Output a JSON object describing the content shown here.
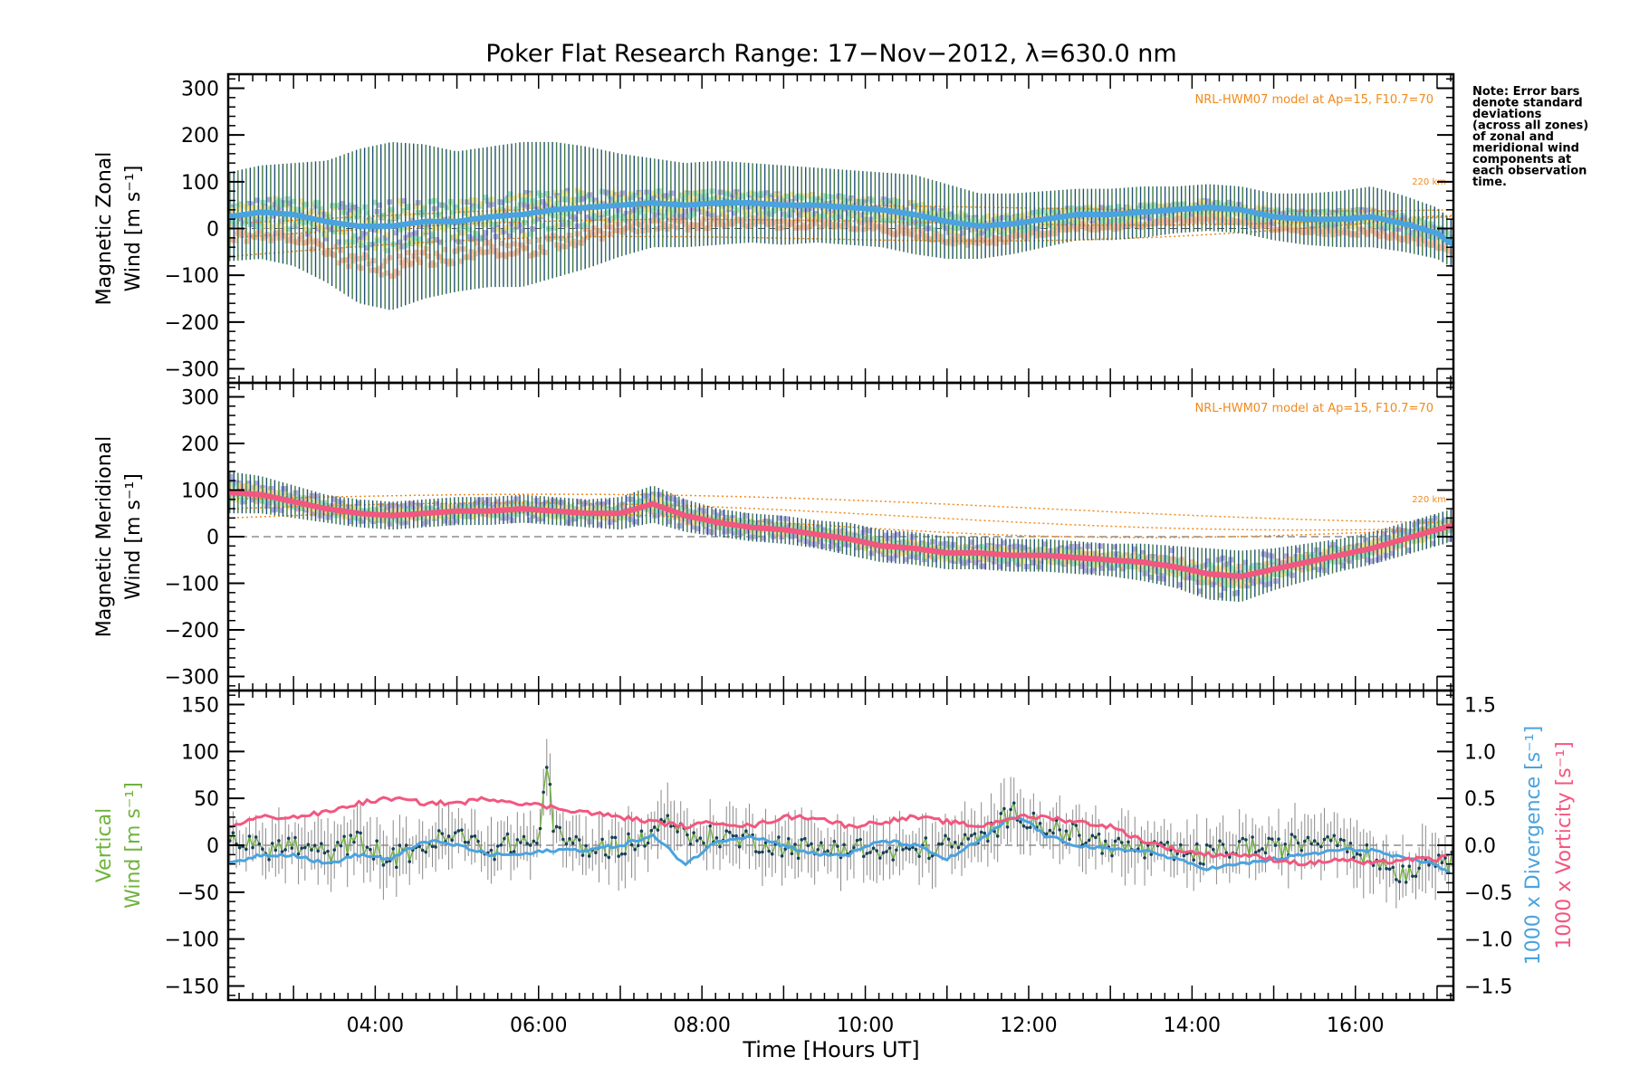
{
  "chart_data": {
    "title": "Poker Flat Research Range: 17−Nov−2012, λ=630.0 nm",
    "note": [
      "Note: Error bars",
      "denote standard",
      "deviations",
      "(across all zones)",
      "of zonal and",
      "meridional wind",
      "components at",
      "each observation",
      "time."
    ],
    "xlabel": "Time [Hours UT]",
    "xlim": [
      2.2,
      17.2
    ],
    "xticks": [
      "04:00",
      "06:00",
      "08:00",
      "10:00",
      "12:00",
      "14:00",
      "16:00"
    ],
    "xtick_values": [
      4,
      6,
      8,
      10,
      12,
      14,
      16
    ],
    "colors": {
      "zonal_line": "#4aa3df",
      "meridional_line": "#f2577f",
      "vertical_line": "#6fb33c",
      "divergence_line": "#4aa3df",
      "vorticity_line": "#f2577f",
      "errorbar_dark": "#1f4f7a",
      "errorbar_green": "#3d7a3d",
      "model_line": "#f08a1c",
      "zone_peach": "#f9b99a",
      "zone_lavender": "#a9a0e0",
      "zone_yellow": "#f6e38a",
      "zone_mint": "#8fe0c0",
      "vertical_errorbar": "#8a8a8a"
    },
    "panels": [
      {
        "name": "zonal",
        "ylabel": [
          "Magnetic Zonal",
          "Wind [m s⁻¹]"
        ],
        "ylim": [
          -330,
          330
        ],
        "yticks": [
          -300,
          -200,
          -100,
          0,
          100,
          200,
          300
        ],
        "model_label": "NRL-HWM07 model at Ap=15, F10.7=70",
        "model_altitude_label": "220 km",
        "series": {
          "x": [
            2.2,
            2.6,
            3.0,
            3.4,
            3.8,
            4.2,
            4.6,
            5.0,
            5.4,
            5.8,
            6.2,
            6.6,
            7.0,
            7.4,
            7.8,
            8.2,
            8.6,
            9.0,
            9.4,
            9.8,
            10.2,
            10.6,
            11.0,
            11.4,
            11.8,
            12.2,
            12.6,
            13.0,
            13.4,
            13.8,
            14.2,
            14.6,
            15.0,
            15.4,
            15.8,
            16.2,
            16.6,
            17.0,
            17.2
          ],
          "mean": [
            25,
            35,
            30,
            15,
            5,
            5,
            15,
            15,
            25,
            30,
            40,
            45,
            50,
            55,
            50,
            55,
            55,
            50,
            50,
            45,
            40,
            30,
            15,
            5,
            10,
            20,
            30,
            30,
            35,
            40,
            45,
            40,
            25,
            20,
            20,
            25,
            10,
            -10,
            -35
          ],
          "std": [
            95,
            100,
            110,
            130,
            165,
            180,
            165,
            150,
            150,
            155,
            145,
            130,
            110,
            95,
            90,
            90,
            85,
            85,
            80,
            80,
            80,
            85,
            80,
            70,
            65,
            60,
            55,
            55,
            55,
            50,
            50,
            50,
            50,
            55,
            60,
            65,
            60,
            55,
            50
          ]
        },
        "model_curves": [
          {
            "label": "220 km",
            "values_start": 10,
            "values_end": 60
          },
          {
            "label": "",
            "values_start": -20,
            "values_end": 40
          },
          {
            "label": "",
            "values_start": -60,
            "values_end": 20
          }
        ]
      },
      {
        "name": "meridional",
        "ylabel": [
          "Magnetic Meridional",
          "Wind [m s⁻¹]"
        ],
        "ylim": [
          -330,
          330
        ],
        "yticks": [
          -300,
          -200,
          -100,
          0,
          100,
          200,
          300
        ],
        "model_label": "NRL-HWM07 model at Ap=15, F10.7=70",
        "model_altitude_label": "220 km",
        "series": {
          "x": [
            2.2,
            2.6,
            3.0,
            3.4,
            3.8,
            4.2,
            4.6,
            5.0,
            5.4,
            5.8,
            6.2,
            6.6,
            7.0,
            7.4,
            7.8,
            8.2,
            8.6,
            9.0,
            9.4,
            9.8,
            10.2,
            10.6,
            11.0,
            11.4,
            11.8,
            12.2,
            12.6,
            13.0,
            13.4,
            13.8,
            14.2,
            14.6,
            15.0,
            15.4,
            15.8,
            16.2,
            16.6,
            17.0,
            17.2
          ],
          "mean": [
            95,
            90,
            75,
            60,
            50,
            45,
            50,
            55,
            55,
            60,
            55,
            50,
            50,
            70,
            45,
            30,
            20,
            15,
            5,
            -5,
            -20,
            -25,
            -35,
            -35,
            -40,
            -40,
            -45,
            -50,
            -55,
            -65,
            -80,
            -85,
            -70,
            -55,
            -40,
            -25,
            -5,
            15,
            25
          ],
          "std": [
            45,
            40,
            35,
            30,
            30,
            30,
            30,
            30,
            30,
            30,
            30,
            30,
            35,
            40,
            35,
            30,
            30,
            30,
            30,
            35,
            35,
            35,
            35,
            35,
            35,
            35,
            35,
            35,
            40,
            45,
            55,
            55,
            45,
            40,
            35,
            35,
            35,
            35,
            35
          ]
        },
        "model_curves": [
          {
            "label": "220 km",
            "values_start": 80,
            "values_end": 50
          },
          {
            "label": "",
            "values_start": 60,
            "values_end": 30
          },
          {
            "label": "",
            "values_start": 40,
            "values_end": 10
          }
        ]
      },
      {
        "name": "vertical",
        "ylabel": [
          "Vertical",
          "Wind [m s⁻¹]"
        ],
        "ylim": [
          -165,
          165
        ],
        "yticks": [
          -150,
          -100,
          -50,
          0,
          50,
          100,
          150
        ],
        "y2label_divergence": "1000 x Divergence [s⁻¹]",
        "y2label_vorticity": "1000 x Vorticity [s⁻¹]",
        "y2lim": [
          -1.65,
          1.65
        ],
        "y2ticks": [
          -1.5,
          -1.0,
          -0.5,
          0.0,
          0.5,
          1.0,
          1.5
        ],
        "y2ticklabels": [
          "−1.5",
          "−1.0",
          "−0.5",
          "0.0",
          "0.5",
          "1.0",
          "1.5"
        ],
        "vertical": {
          "x": [
            2.2,
            2.6,
            3.0,
            3.4,
            3.8,
            4.2,
            4.6,
            5.0,
            5.4,
            5.8,
            6.0,
            6.1,
            6.2,
            6.6,
            7.0,
            7.4,
            7.6,
            7.8,
            8.2,
            8.6,
            9.0,
            9.4,
            9.8,
            10.2,
            10.6,
            11.0,
            11.4,
            11.8,
            12.0,
            12.2,
            12.6,
            13.0,
            13.4,
            13.8,
            14.2,
            14.6,
            15.0,
            15.4,
            15.8,
            16.2,
            16.6,
            17.0,
            17.2
          ],
          "values": [
            10,
            -5,
            0,
            -10,
            5,
            -15,
            0,
            10,
            -5,
            5,
            0,
            90,
            10,
            -5,
            0,
            10,
            35,
            5,
            10,
            5,
            0,
            -5,
            0,
            -10,
            -5,
            0,
            5,
            35,
            30,
            20,
            10,
            0,
            -5,
            -10,
            -10,
            0,
            -5,
            5,
            10,
            -15,
            -30,
            -10,
            -20
          ]
        },
        "divergence": {
          "x": [
            2.2,
            2.6,
            3.0,
            3.4,
            3.8,
            4.2,
            4.6,
            5.0,
            5.4,
            5.8,
            6.2,
            6.6,
            7.0,
            7.4,
            7.8,
            8.2,
            8.6,
            9.0,
            9.4,
            9.8,
            10.2,
            10.6,
            11.0,
            11.4,
            11.8,
            12.0,
            12.2,
            12.6,
            13.0,
            13.4,
            13.8,
            14.2,
            14.6,
            15.0,
            15.4,
            15.8,
            16.2,
            16.6,
            17.0,
            17.2
          ],
          "values": [
            -0.2,
            -0.1,
            -0.1,
            -0.2,
            -0.1,
            -0.15,
            0.05,
            0.0,
            -0.1,
            -0.1,
            -0.05,
            -0.05,
            0.0,
            0.1,
            -0.2,
            0.05,
            0.1,
            0.0,
            -0.1,
            -0.1,
            0.05,
            0.0,
            -0.15,
            0.05,
            0.3,
            0.25,
            0.1,
            0.0,
            -0.05,
            -0.05,
            -0.15,
            -0.25,
            -0.2,
            -0.15,
            -0.1,
            -0.05,
            -0.05,
            -0.15,
            -0.2,
            -0.35
          ]
        },
        "vorticity": {
          "x": [
            2.2,
            2.6,
            3.0,
            3.4,
            3.8,
            4.2,
            4.6,
            5.0,
            5.4,
            5.8,
            6.2,
            6.6,
            7.0,
            7.4,
            7.8,
            8.2,
            8.6,
            9.0,
            9.4,
            9.8,
            10.2,
            10.6,
            11.0,
            11.4,
            11.8,
            12.2,
            12.6,
            13.0,
            13.4,
            13.8,
            14.2,
            14.6,
            15.0,
            15.4,
            15.8,
            16.2,
            16.6,
            17.0,
            17.2
          ],
          "values": [
            0.2,
            0.3,
            0.3,
            0.35,
            0.45,
            0.5,
            0.45,
            0.45,
            0.5,
            0.45,
            0.4,
            0.35,
            0.3,
            0.25,
            0.2,
            0.25,
            0.2,
            0.3,
            0.3,
            0.2,
            0.25,
            0.3,
            0.25,
            0.2,
            0.3,
            0.3,
            0.25,
            0.2,
            0.05,
            -0.05,
            -0.1,
            -0.1,
            -0.15,
            -0.2,
            -0.15,
            -0.2,
            -0.15,
            -0.15,
            -0.1
          ]
        }
      }
    ]
  }
}
